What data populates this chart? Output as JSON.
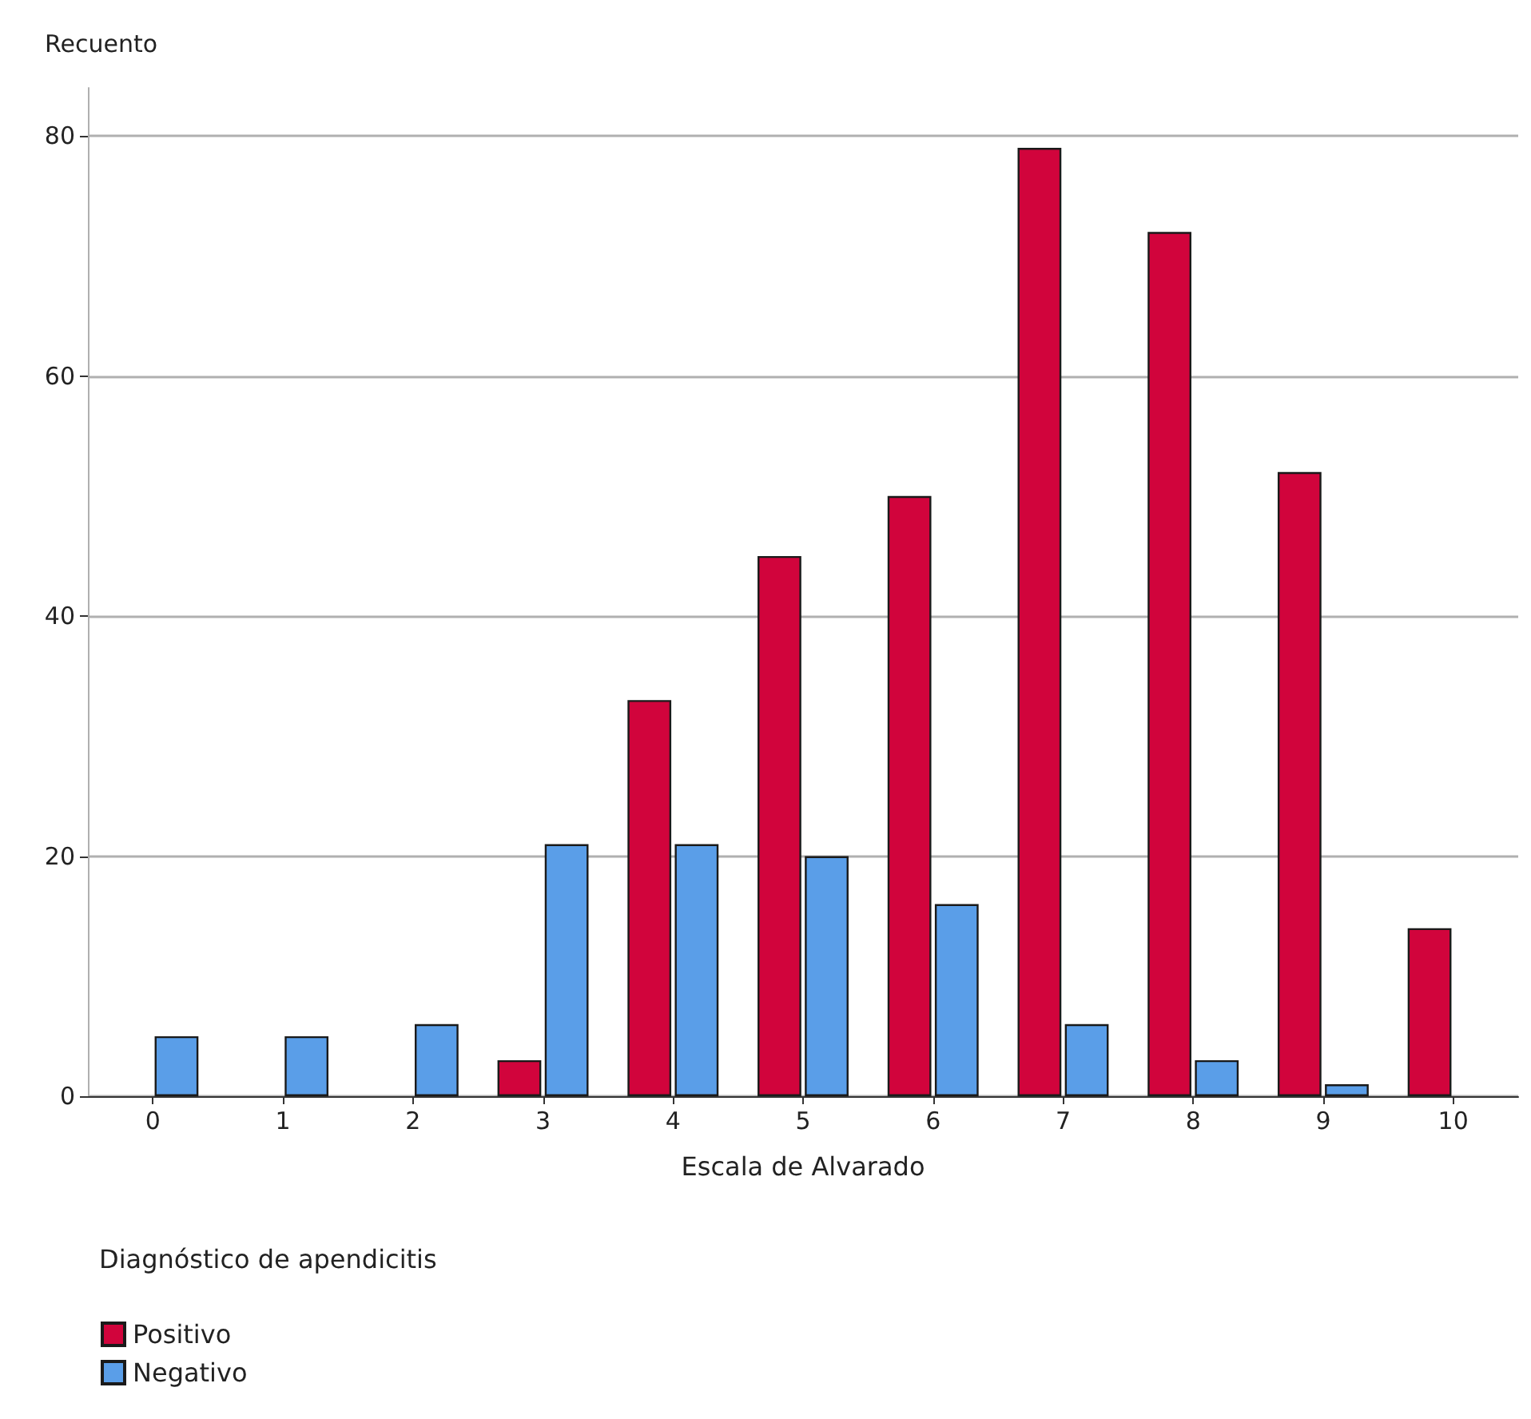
{
  "chart_data": {
    "type": "bar",
    "xlabel": "Escala de Alvarado",
    "ylabel": "Recuento",
    "legend_title": "Diagnóstico de apendicitis",
    "categories": [
      "0",
      "1",
      "2",
      "3",
      "4",
      "5",
      "6",
      "7",
      "8",
      "9",
      "10"
    ],
    "series": [
      {
        "name": "Positivo",
        "color": "#d1043c",
        "values": [
          null,
          null,
          null,
          3,
          33,
          45,
          50,
          79,
          72,
          52,
          14
        ]
      },
      {
        "name": "Negativo",
        "color": "#5a9ee8",
        "values": [
          5,
          5,
          6,
          21,
          21,
          20,
          16,
          6,
          3,
          1,
          null
        ]
      }
    ],
    "ylim": [
      0,
      84
    ],
    "yticks": [
      0,
      20,
      40,
      60,
      80
    ],
    "grid": "y",
    "legend": "bottom left"
  }
}
